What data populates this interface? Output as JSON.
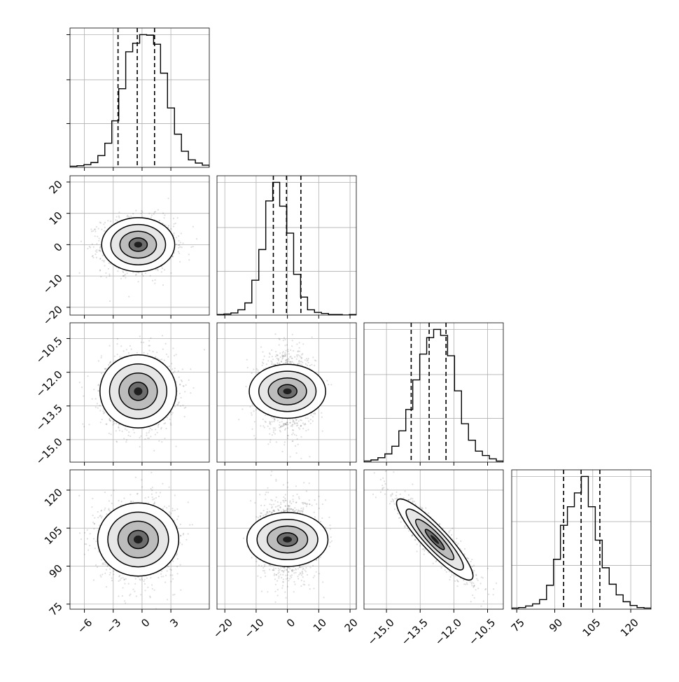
{
  "chart_data": {
    "type": "corner",
    "n_params": 4,
    "axis_ranges": [
      [
        -7.5,
        7.0
      ],
      [
        -22.5,
        22.0
      ],
      [
        -16.0,
        -9.8
      ],
      [
        73.0,
        128.0
      ]
    ],
    "x_tick_labels": [
      [
        "−6",
        "−3",
        "0",
        "3"
      ],
      [
        "−20",
        "−10",
        "0",
        "10",
        "20"
      ],
      [
        "−15.0",
        "−13.5",
        "−12.0",
        "−10.5"
      ],
      [
        "75",
        "90",
        "105",
        "120"
      ]
    ],
    "x_tick_values": [
      [
        -6,
        -3,
        0,
        3
      ],
      [
        -20,
        -10,
        0,
        10,
        20
      ],
      [
        -15.0,
        -13.5,
        -12.0,
        -10.5
      ],
      [
        75,
        90,
        105,
        120
      ]
    ],
    "y_tick_labels": [
      [],
      [
        "−20",
        "−10",
        "0",
        "10",
        "20"
      ],
      [
        "−15.0",
        "−13.5",
        "−12.0",
        "−10.5"
      ],
      [
        "75",
        "90",
        "105",
        "120"
      ]
    ],
    "y_tick_values": [
      [],
      [
        -20,
        -10,
        0,
        10,
        20
      ],
      [
        -15.0,
        -13.5,
        -12.0,
        -10.5
      ],
      [
        75,
        90,
        105,
        120
      ]
    ],
    "quantiles": [
      [
        -2.5,
        -0.5,
        1.3
      ],
      [
        -4.5,
        -0.3,
        4.3
      ],
      [
        -13.9,
        -13.1,
        -12.35
      ],
      [
        93.5,
        100.4,
        107.8
      ]
    ],
    "histograms": [
      {
        "edges_min": -7.5,
        "edges_max": 7.0,
        "counts": [
          2,
          3,
          5,
          9,
          22,
          45,
          87,
          147,
          216,
          232,
          248,
          247,
          230,
          176,
          111,
          62,
          30,
          14,
          8,
          4
        ]
      },
      {
        "edges_min": -22.5,
        "edges_max": 22.0,
        "counts": [
          1,
          2,
          4,
          10,
          23,
          66,
          124,
          216,
          251,
          206,
          155,
          77,
          34,
          10,
          5,
          3,
          1,
          1,
          0,
          1
        ]
      },
      {
        "edges_min": -16.0,
        "edges_max": -9.8,
        "counts": [
          2,
          4,
          8,
          15,
          29,
          57,
          96,
          150,
          197,
          227,
          242,
          231,
          194,
          130,
          70,
          40,
          20,
          12,
          6,
          2
        ]
      },
      {
        "edges_min": 73.0,
        "edges_max": 128.0,
        "counts": [
          2,
          3,
          6,
          10,
          18,
          45,
          94,
          158,
          193,
          219,
          250,
          193,
          130,
          78,
          47,
          27,
          14,
          7,
          3,
          2
        ]
      }
    ],
    "pair_stats": {
      "means": [
        -0.4,
        0.0,
        -12.85,
        100.5
      ],
      "sds": [
        1.9,
        4.3,
        0.85,
        8.0
      ],
      "correlations": {
        "2-3": -0.9
      }
    },
    "grid": true,
    "xlabel": "",
    "ylabel": "",
    "title": ""
  }
}
